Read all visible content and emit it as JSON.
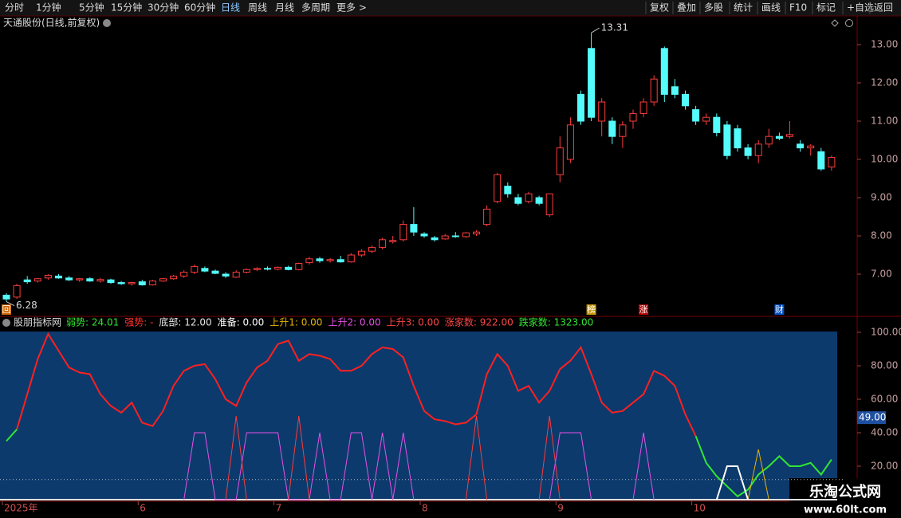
{
  "toolbar": {
    "left": [
      "分时",
      "1分钟",
      "5分钟",
      "15分钟",
      "30分钟",
      "60分钟",
      "日线",
      "周线",
      "月线",
      "多周期",
      "更多 >"
    ],
    "right": [
      "复权",
      "叠加",
      "多股",
      "统计",
      "画线",
      "F10",
      "标记",
      "+自选",
      "返回"
    ]
  },
  "watermark": {
    "title": "乐淘公式网",
    "url": "www.60lt.com"
  },
  "chart_data": [
    {
      "type": "candlestick",
      "title": "天通股份(日线,前复权)",
      "up_color": "#ff3c3c",
      "down_color": "#54fcfc",
      "ylim": [
        6.25,
        13.375
      ],
      "yticks": [
        {
          "value": 7,
          "label": "7.00"
        },
        {
          "value": 8,
          "label": "8.00"
        },
        {
          "value": 9,
          "label": "9.00"
        },
        {
          "value": 10,
          "label": "10.00"
        },
        {
          "value": 11,
          "label": "11.00"
        },
        {
          "value": 12,
          "label": "12.00"
        },
        {
          "value": 13,
          "label": "13.00"
        }
      ],
      "candles": [
        [
          6.45,
          6.5,
          6.28,
          6.35
        ],
        [
          6.4,
          6.75,
          6.35,
          6.7
        ],
        [
          6.85,
          6.95,
          6.75,
          6.8
        ],
        [
          6.82,
          6.9,
          6.78,
          6.88
        ],
        [
          6.9,
          7.0,
          6.85,
          6.97
        ],
        [
          6.95,
          7.0,
          6.88,
          6.9
        ],
        [
          6.9,
          6.95,
          6.82,
          6.85
        ],
        [
          6.85,
          6.9,
          6.8,
          6.88
        ],
        [
          6.88,
          6.92,
          6.8,
          6.82
        ],
        [
          6.82,
          6.9,
          6.78,
          6.86
        ],
        [
          6.85,
          6.88,
          6.75,
          6.78
        ],
        [
          6.78,
          6.82,
          6.72,
          6.75
        ],
        [
          6.75,
          6.8,
          6.7,
          6.78
        ],
        [
          6.8,
          6.85,
          6.7,
          6.72
        ],
        [
          6.72,
          6.85,
          6.7,
          6.82
        ],
        [
          6.82,
          6.9,
          6.8,
          6.88
        ],
        [
          6.88,
          6.98,
          6.85,
          6.95
        ],
        [
          6.95,
          7.1,
          6.9,
          7.05
        ],
        [
          7.05,
          7.25,
          7.0,
          7.2
        ],
        [
          7.15,
          7.2,
          7.05,
          7.08
        ],
        [
          7.08,
          7.12,
          7.0,
          7.02
        ],
        [
          7.0,
          7.05,
          6.9,
          6.95
        ],
        [
          6.92,
          7.1,
          6.9,
          7.05
        ],
        [
          7.05,
          7.15,
          7.02,
          7.12
        ],
        [
          7.12,
          7.18,
          7.08,
          7.15
        ],
        [
          7.15,
          7.2,
          7.1,
          7.13
        ],
        [
          7.13,
          7.2,
          7.1,
          7.18
        ],
        [
          7.18,
          7.22,
          7.1,
          7.12
        ],
        [
          7.12,
          7.3,
          7.1,
          7.28
        ],
        [
          7.3,
          7.45,
          7.25,
          7.4
        ],
        [
          7.4,
          7.45,
          7.3,
          7.35
        ],
        [
          7.35,
          7.42,
          7.3,
          7.38
        ],
        [
          7.38,
          7.48,
          7.3,
          7.32
        ],
        [
          7.32,
          7.55,
          7.3,
          7.5
        ],
        [
          7.5,
          7.65,
          7.45,
          7.6
        ],
        [
          7.6,
          7.75,
          7.55,
          7.7
        ],
        [
          7.7,
          7.95,
          7.65,
          7.9
        ],
        [
          7.85,
          8.0,
          7.8,
          7.88
        ],
        [
          7.9,
          8.4,
          7.85,
          8.3
        ],
        [
          8.3,
          8.75,
          8.0,
          8.1
        ],
        [
          8.05,
          8.1,
          7.95,
          8.0
        ],
        [
          7.95,
          8.0,
          7.85,
          7.9
        ],
        [
          7.92,
          8.05,
          7.9,
          8.0
        ],
        [
          8.0,
          8.1,
          7.95,
          7.98
        ],
        [
          7.98,
          8.1,
          7.95,
          8.08
        ],
        [
          8.05,
          8.15,
          8.0,
          8.1
        ],
        [
          8.3,
          8.8,
          8.25,
          8.7
        ],
        [
          8.9,
          9.65,
          8.85,
          9.6
        ],
        [
          9.3,
          9.4,
          9.0,
          9.1
        ],
        [
          9.0,
          9.1,
          8.8,
          8.85
        ],
        [
          8.9,
          9.15,
          8.85,
          9.1
        ],
        [
          9.0,
          9.05,
          8.8,
          8.85
        ],
        [
          8.55,
          9.1,
          8.5,
          9.1
        ],
        [
          9.6,
          10.6,
          9.4,
          10.3
        ],
        [
          10.0,
          11.1,
          9.9,
          10.9
        ],
        [
          11.7,
          11.8,
          10.9,
          11.0
        ],
        [
          12.9,
          13.31,
          11.0,
          11.1
        ],
        [
          11.0,
          11.6,
          10.6,
          11.5
        ],
        [
          11.0,
          11.1,
          10.4,
          10.6
        ],
        [
          10.6,
          11.0,
          10.3,
          10.9
        ],
        [
          11.0,
          11.3,
          10.8,
          11.2
        ],
        [
          11.2,
          11.6,
          11.1,
          11.5
        ],
        [
          11.5,
          12.2,
          11.4,
          12.1
        ],
        [
          12.9,
          12.95,
          11.5,
          11.7
        ],
        [
          11.9,
          12.1,
          11.6,
          11.7
        ],
        [
          11.7,
          11.8,
          11.3,
          11.4
        ],
        [
          11.3,
          11.4,
          10.9,
          11.0
        ],
        [
          11.0,
          11.2,
          10.9,
          11.1
        ],
        [
          11.1,
          11.2,
          10.6,
          10.7
        ],
        [
          10.9,
          11.0,
          10.0,
          10.1
        ],
        [
          10.8,
          10.9,
          10.2,
          10.3
        ],
        [
          10.3,
          10.4,
          10.0,
          10.1
        ],
        [
          10.1,
          10.5,
          9.9,
          10.4
        ],
        [
          10.4,
          10.8,
          10.3,
          10.6
        ],
        [
          10.6,
          10.7,
          10.5,
          10.55
        ],
        [
          10.6,
          11.0,
          10.55,
          10.65
        ],
        [
          10.4,
          10.5,
          10.2,
          10.3
        ],
        [
          10.3,
          10.4,
          10.1,
          10.35
        ],
        [
          10.2,
          10.3,
          9.7,
          9.75
        ],
        [
          9.8,
          10.1,
          9.7,
          10.05
        ]
      ],
      "high_mark": {
        "candle": 56,
        "value": 13.31
      },
      "low_mark": {
        "candle": 0,
        "value": 6.28
      },
      "events": [
        {
          "candle": 0,
          "label": "回",
          "color": "#c86400"
        },
        {
          "candle": 56,
          "label": "榜",
          "color": "#c89600"
        },
        {
          "candle": 61,
          "label": "涨",
          "color": "#b40000"
        },
        {
          "candle": 74,
          "label": "财",
          "color": "#0050c8"
        }
      ]
    },
    {
      "type": "line",
      "title": "股朋指标网",
      "background": "#0c3a6c",
      "ylim": [
        0,
        105
      ],
      "yticks": [
        {
          "value": 20,
          "label": "20.00"
        },
        {
          "value": 40,
          "label": "40.00"
        },
        {
          "value": 60,
          "label": "60.00"
        },
        {
          "value": 80,
          "label": "80.00"
        },
        {
          "value": 100,
          "label": "100.00"
        }
      ],
      "bottom_line": 12,
      "marker": {
        "value": 49,
        "label": "49.00"
      },
      "legend": [
        {
          "text": "弱势: 24.01",
          "color": "#32e632"
        },
        {
          "text": "强势: -",
          "color": "#ff3232"
        },
        {
          "text": "底部: 12.00",
          "color": "#e6e6e6"
        },
        {
          "text": "准备: 0.00",
          "color": "#ffffff"
        },
        {
          "text": "上升1: 0.00",
          "color": "#e6b400"
        },
        {
          "text": "上升2: 0.00",
          "color": "#e650e6"
        },
        {
          "text": "上升3: 0.00",
          "color": "#ff4646"
        },
        {
          "text": "涨家数: 922.00",
          "color": "#ff4646"
        },
        {
          "text": "跌家数: 1323.00",
          "color": "#32e632"
        }
      ],
      "categories": [
        "2025年",
        null,
        null,
        null,
        null,
        null,
        null,
        null,
        null,
        null,
        null,
        null,
        null,
        "6",
        null,
        null,
        null,
        null,
        null,
        null,
        null,
        null,
        null,
        null,
        null,
        null,
        "7",
        null,
        null,
        null,
        null,
        null,
        null,
        null,
        null,
        null,
        null,
        null,
        null,
        null,
        "8",
        null,
        null,
        null,
        null,
        null,
        null,
        null,
        null,
        null,
        null,
        null,
        null,
        "9",
        null,
        null,
        null,
        null,
        null,
        null,
        null,
        null,
        null,
        null,
        null,
        null,
        "10",
        null,
        null,
        null,
        null,
        null,
        null,
        null,
        null,
        null,
        null,
        null,
        null,
        null
      ],
      "series": [
        {
          "color": "#ff2020",
          "width": 2,
          "values": [
            null,
            42,
            63,
            84,
            99,
            89,
            79,
            76,
            75,
            63,
            56,
            52,
            58,
            46,
            44,
            53,
            68,
            77,
            80,
            81,
            72,
            60,
            56,
            70,
            79,
            83,
            93,
            95,
            83,
            87,
            86,
            84,
            77,
            77,
            80,
            87,
            91,
            90,
            85,
            68,
            53,
            48,
            47,
            45,
            46,
            51,
            75,
            87,
            80,
            65,
            68,
            58,
            65,
            78,
            83,
            91,
            75,
            58,
            52,
            53,
            58,
            63,
            77,
            74,
            68,
            51,
            38,
            null,
            null,
            null,
            null,
            null,
            null,
            null,
            null,
            null,
            null,
            null,
            null,
            null
          ]
        },
        {
          "color": "#32e632",
          "width": 2,
          "values": [
            35,
            42,
            null,
            null,
            null,
            null,
            null,
            null,
            null,
            null,
            null,
            null,
            null,
            null,
            null,
            null,
            null,
            null,
            null,
            null,
            null,
            null,
            null,
            null,
            null,
            null,
            null,
            null,
            null,
            null,
            null,
            null,
            null,
            null,
            null,
            null,
            null,
            null,
            null,
            null,
            null,
            null,
            null,
            null,
            null,
            null,
            null,
            null,
            null,
            null,
            null,
            null,
            null,
            null,
            null,
            null,
            null,
            null,
            null,
            null,
            null,
            null,
            null,
            null,
            null,
            null,
            38,
            22,
            14,
            8,
            2,
            6,
            15,
            20,
            26,
            20,
            20,
            22,
            15,
            24.01
          ]
        },
        {
          "color": "#e650e6",
          "width": 1,
          "values": [
            null,
            null,
            null,
            null,
            null,
            null,
            null,
            null,
            null,
            null,
            null,
            null,
            null,
            null,
            null,
            null,
            null,
            0,
            40,
            40,
            0,
            0,
            0,
            40,
            40,
            40,
            40,
            0,
            0,
            0,
            40,
            0,
            0,
            40,
            40,
            0,
            40,
            0,
            40,
            0,
            null,
            null,
            null,
            null,
            null,
            null,
            null,
            null,
            null,
            null,
            null,
            null,
            0,
            40,
            40,
            40,
            0,
            null,
            null,
            null,
            0,
            40,
            0,
            null,
            null,
            null,
            null,
            null,
            null,
            null,
            null,
            null,
            null,
            null,
            null,
            null,
            null,
            null,
            null,
            null
          ]
        },
        {
          "color": "#ff3c3c",
          "width": 1,
          "values": [
            null,
            null,
            null,
            null,
            null,
            null,
            null,
            null,
            null,
            null,
            null,
            null,
            null,
            null,
            null,
            null,
            null,
            null,
            null,
            null,
            null,
            0,
            50,
            0,
            null,
            null,
            null,
            0,
            50,
            0,
            null,
            null,
            null,
            null,
            null,
            null,
            null,
            null,
            null,
            null,
            null,
            null,
            null,
            null,
            0,
            50,
            0,
            null,
            null,
            null,
            null,
            0,
            50,
            0,
            null,
            null,
            null,
            null,
            null,
            null,
            null,
            null,
            null,
            null,
            null,
            null,
            null,
            null,
            null,
            null,
            null,
            null,
            null,
            null,
            null,
            null,
            null,
            null,
            null,
            null
          ]
        },
        {
          "color": "#e6b400",
          "width": 1,
          "values": [
            null,
            null,
            null,
            null,
            null,
            null,
            null,
            null,
            null,
            null,
            null,
            null,
            null,
            null,
            null,
            null,
            null,
            null,
            null,
            null,
            null,
            null,
            null,
            null,
            null,
            null,
            null,
            null,
            null,
            null,
            null,
            null,
            null,
            null,
            null,
            null,
            null,
            null,
            null,
            null,
            null,
            null,
            null,
            null,
            null,
            null,
            null,
            null,
            null,
            null,
            null,
            null,
            null,
            null,
            null,
            null,
            null,
            null,
            null,
            null,
            null,
            null,
            null,
            null,
            null,
            null,
            null,
            null,
            null,
            null,
            null,
            0,
            30,
            0,
            null,
            null,
            null,
            null,
            null,
            null
          ]
        },
        {
          "color": "#ffffff",
          "width": 2,
          "values": [
            null,
            null,
            null,
            null,
            null,
            null,
            null,
            null,
            null,
            null,
            null,
            null,
            null,
            null,
            null,
            null,
            null,
            null,
            null,
            null,
            null,
            null,
            null,
            null,
            null,
            null,
            null,
            null,
            null,
            null,
            null,
            null,
            null,
            null,
            null,
            null,
            null,
            null,
            null,
            null,
            null,
            null,
            null,
            null,
            null,
            null,
            null,
            null,
            null,
            null,
            null,
            null,
            null,
            null,
            null,
            null,
            null,
            null,
            null,
            null,
            null,
            null,
            null,
            null,
            null,
            null,
            null,
            null,
            0,
            20,
            20,
            0,
            null,
            null,
            null,
            null,
            null,
            null,
            null,
            null
          ]
        }
      ]
    }
  ]
}
